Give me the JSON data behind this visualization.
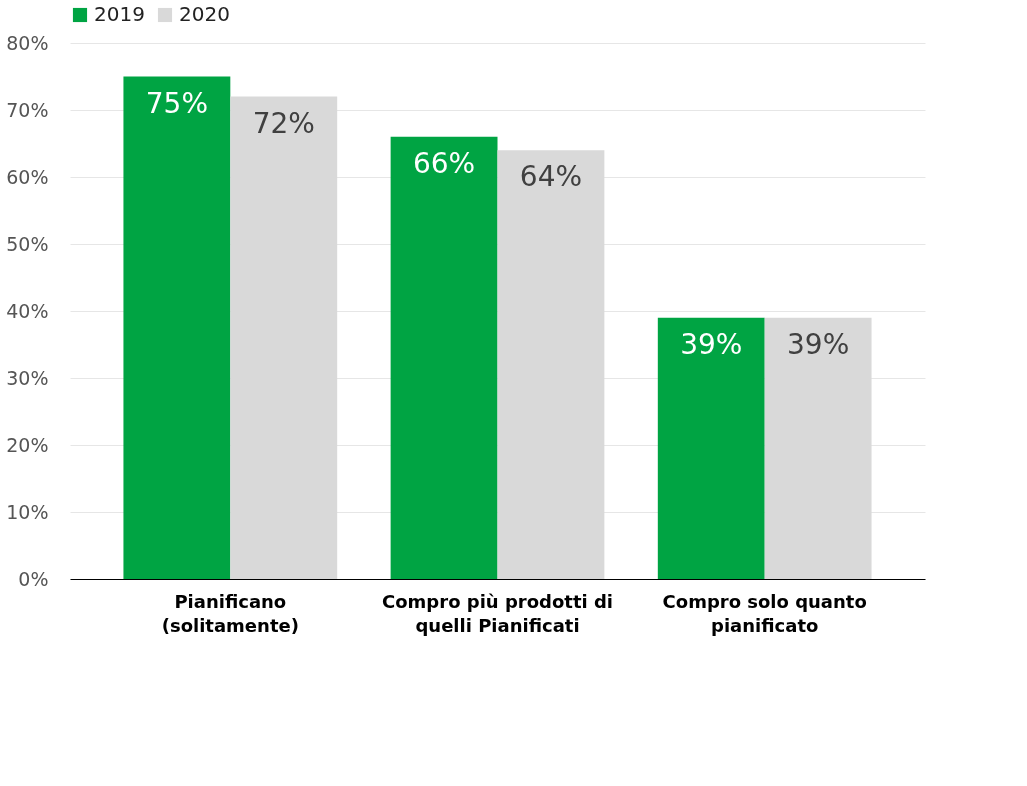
{
  "chart_data": {
    "type": "bar",
    "categories": [
      "Pianificano (solitamente)",
      "Compro più prodotti di quelli Pianificati",
      "Compro solo quanto pianificato"
    ],
    "series": [
      {
        "name": "2019",
        "color": "#00a443",
        "values": [
          75,
          66,
          39
        ],
        "value_labels": [
          "75%",
          "66%",
          "39%"
        ]
      },
      {
        "name": "2020",
        "color": "#d9d9d9",
        "values": [
          72,
          64,
          39
        ],
        "value_labels": [
          "72%",
          "64%",
          "39%"
        ]
      }
    ],
    "ylim": [
      0,
      80
    ],
    "yticks": [
      {
        "value": 0,
        "label": "0%"
      },
      {
        "value": 10,
        "label": "10%"
      },
      {
        "value": 20,
        "label": "20%"
      },
      {
        "value": 30,
        "label": "30%"
      },
      {
        "value": 40,
        "label": "40%"
      },
      {
        "value": 50,
        "label": "50%"
      },
      {
        "value": 60,
        "label": "60%"
      },
      {
        "value": 70,
        "label": "70%"
      },
      {
        "value": 80,
        "label": "80%"
      }
    ],
    "grid": "y",
    "legend": "top"
  }
}
